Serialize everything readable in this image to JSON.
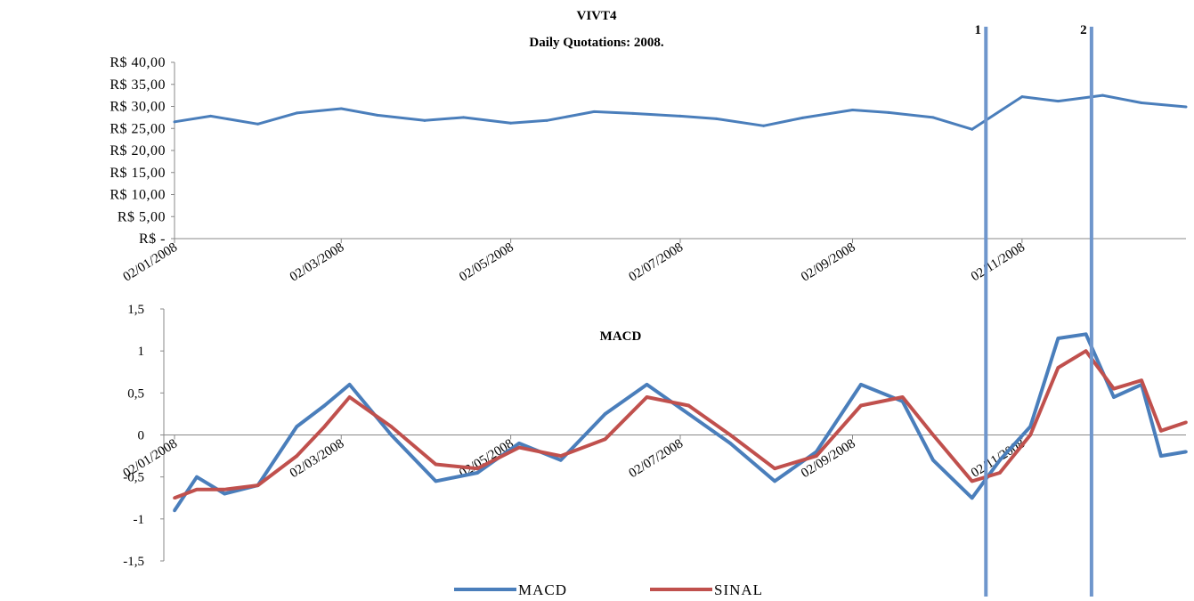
{
  "chart_data": [
    {
      "type": "line",
      "title": "VIVT4",
      "subtitle": "Daily Quotations: 2008.",
      "ylim": [
        0,
        40
      ],
      "y_ticks": [
        "R$ 40,00",
        "R$ 35,00",
        "R$ 30,00",
        "R$ 25,00",
        "R$ 20,00",
        "R$ 15,00",
        "R$ 10,00",
        "R$ 5,00",
        "R$ -"
      ],
      "x_ticks": [
        "02/01/2008",
        "02/03/2008",
        "02/05/2008",
        "02/07/2008",
        "02/09/2008",
        "02/11/2008"
      ],
      "grid": false,
      "series": [
        {
          "color": "#4a7ebb",
          "x": [
            "02/01/2008",
            "15/01/2008",
            "01/02/2008",
            "15/02/2008",
            "02/03/2008",
            "15/03/2008",
            "01/04/2008",
            "15/04/2008",
            "02/05/2008",
            "15/05/2008",
            "01/06/2008",
            "15/06/2008",
            "02/07/2008",
            "15/07/2008",
            "01/08/2008",
            "15/08/2008",
            "02/09/2008",
            "15/09/2008",
            "01/10/2008",
            "15/10/2008",
            "02/11/2008",
            "15/11/2008",
            "01/12/2008",
            "15/12/2008",
            "31/12/2008"
          ],
          "values": [
            26.5,
            27.8,
            26.0,
            28.5,
            29.5,
            28.0,
            26.8,
            27.5,
            26.2,
            26.8,
            28.8,
            28.4,
            27.8,
            27.2,
            25.6,
            27.4,
            29.2,
            28.6,
            27.5,
            24.8,
            32.2,
            31.2,
            32.5,
            30.8,
            29.9
          ]
        }
      ],
      "markers": [
        {
          "label": "1",
          "x": "20/10/2008"
        },
        {
          "label": "2",
          "x": "27/11/2008"
        }
      ]
    },
    {
      "type": "line",
      "title": "MACD",
      "ylim": [
        -1.5,
        1.5
      ],
      "y_ticks": [
        "1,5",
        "1",
        "0,5",
        "0",
        "-0,5",
        "-1",
        "-1,5"
      ],
      "x_ticks": [
        "02/01/2008",
        "02/03/2008",
        "02/05/2008",
        "02/07/2008",
        "02/09/2008",
        "02/11/2008"
      ],
      "grid": false,
      "legend": "bottom",
      "x": [
        "02/01/2008",
        "10/01/2008",
        "20/01/2008",
        "01/02/2008",
        "15/02/2008",
        "25/02/2008",
        "05/03/2008",
        "20/03/2008",
        "05/04/2008",
        "20/04/2008",
        "05/05/2008",
        "20/05/2008",
        "05/06/2008",
        "20/06/2008",
        "05/07/2008",
        "20/07/2008",
        "05/08/2008",
        "20/08/2008",
        "05/09/2008",
        "20/09/2008",
        "01/10/2008",
        "15/10/2008",
        "25/10/2008",
        "05/11/2008",
        "15/11/2008",
        "25/11/2008",
        "05/12/2008",
        "15/12/2008",
        "22/12/2008",
        "31/12/2008"
      ],
      "series": [
        {
          "name": "MACD",
          "color": "#4a7ebb",
          "values": [
            -0.9,
            -0.5,
            -0.7,
            -0.6,
            0.1,
            0.35,
            0.6,
            0.0,
            -0.55,
            -0.45,
            -0.1,
            -0.3,
            0.25,
            0.6,
            0.25,
            -0.1,
            -0.55,
            -0.2,
            0.6,
            0.4,
            -0.3,
            -0.75,
            -0.3,
            0.1,
            1.15,
            1.2,
            0.45,
            0.6,
            -0.25,
            -0.2
          ]
        },
        {
          "name": "SINAL",
          "color": "#c0504d",
          "values": [
            -0.75,
            -0.65,
            -0.65,
            -0.6,
            -0.25,
            0.1,
            0.45,
            0.1,
            -0.35,
            -0.4,
            -0.15,
            -0.25,
            -0.05,
            0.45,
            0.35,
            0.0,
            -0.4,
            -0.25,
            0.35,
            0.45,
            0.0,
            -0.55,
            -0.45,
            0.0,
            0.8,
            1.0,
            0.55,
            0.65,
            0.05,
            0.15
          ]
        }
      ]
    }
  ]
}
